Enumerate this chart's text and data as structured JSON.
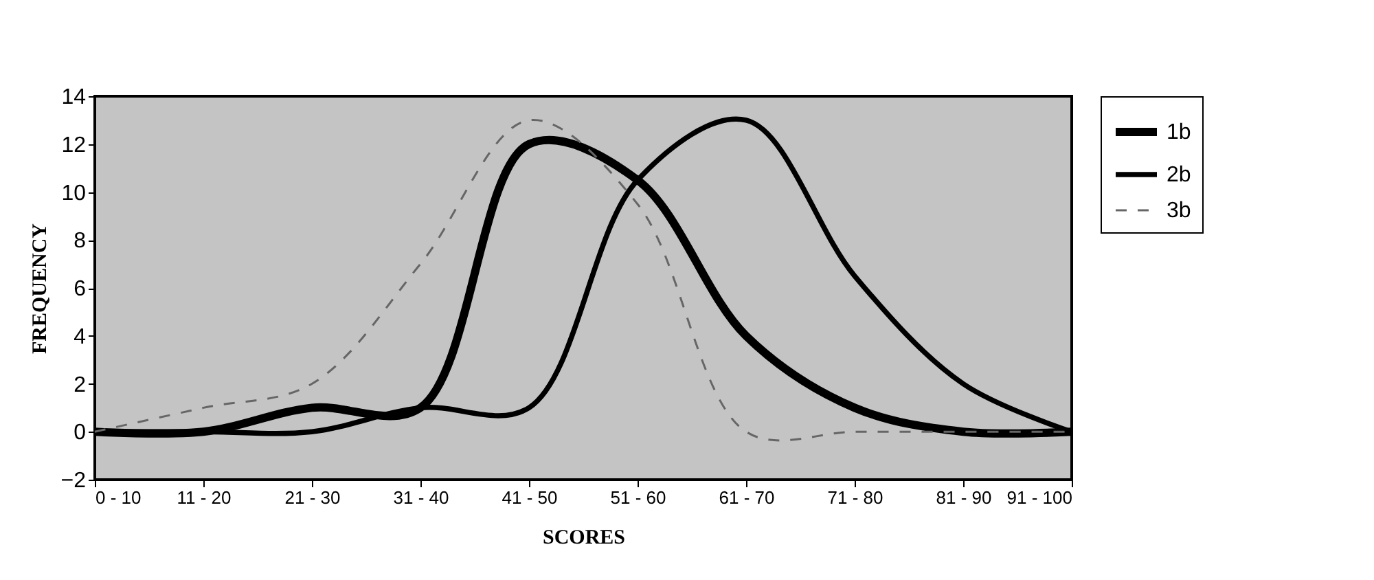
{
  "chart_data": {
    "type": "line",
    "xlabel": "SCORES",
    "ylabel": "FREQUENCY",
    "categories": [
      "0 - 10",
      "11 - 20",
      "21 - 30",
      "31 - 40",
      "41 - 50",
      "51 - 60",
      "61 - 70",
      "71 - 80",
      "81 - 90",
      "91 - 100"
    ],
    "series": [
      {
        "name": "1b",
        "color": "#000000",
        "line_style": "solid",
        "values": [
          0,
          0,
          1,
          1,
          12,
          10.5,
          4,
          1,
          0,
          0
        ]
      },
      {
        "name": "2b",
        "color": "#000000",
        "line_style": "solid",
        "values": [
          0,
          0,
          0,
          1,
          1,
          10.5,
          13,
          6.5,
          2,
          0
        ]
      },
      {
        "name": "3b",
        "color": "#666666",
        "line_style": "dashed",
        "values": [
          0,
          1,
          2,
          7,
          13,
          9.5,
          0,
          0,
          0,
          0
        ]
      }
    ],
    "ylim": [
      -2,
      14
    ],
    "yticks": [
      -2,
      0,
      2,
      4,
      6,
      8,
      10,
      12,
      14
    ],
    "grid": false,
    "legend": "right"
  }
}
